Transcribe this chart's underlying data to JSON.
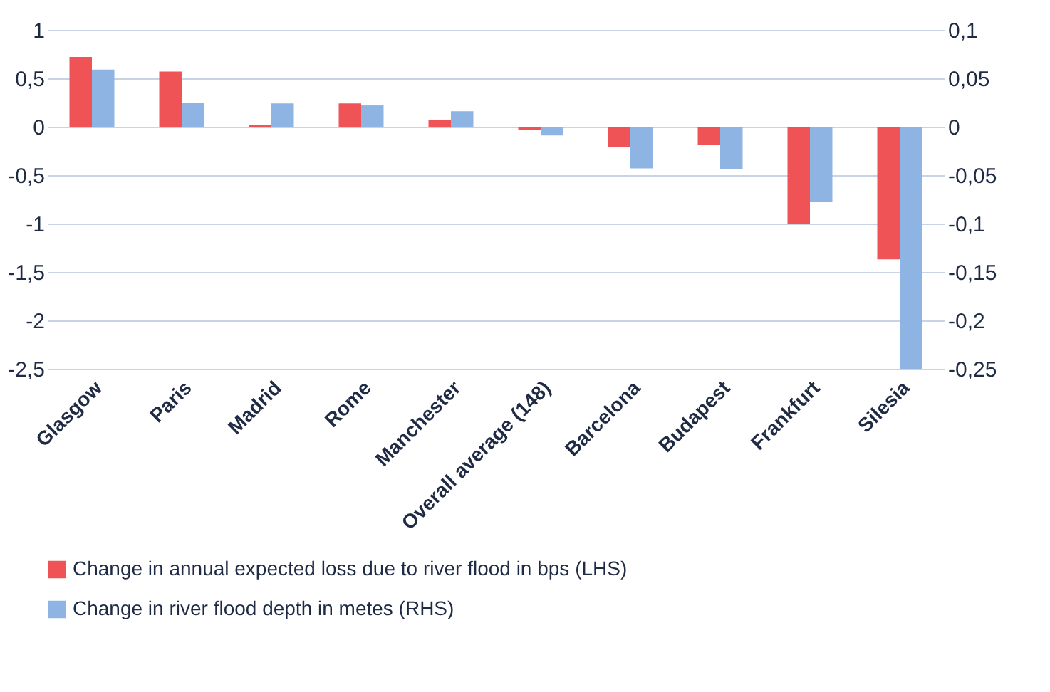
{
  "chart_data": {
    "type": "bar",
    "categories": [
      "Glasgow",
      "Paris",
      "Madrid",
      "Rome",
      "Manchester",
      "Overall average (148)",
      "Barcelona",
      "Budapest",
      "Frankfurt",
      "Silesia"
    ],
    "series": [
      {
        "name": "Change in annual expected loss due to river flood in bps (LHS)",
        "color": "#ef5356",
        "values": [
          0.72,
          0.57,
          0.02,
          0.24,
          0.07,
          -0.03,
          -0.21,
          -0.19,
          -1.0,
          -1.37
        ]
      },
      {
        "name": "Change in river flood depth in metes (RHS)",
        "color": "#8db4e2",
        "axis": "y2",
        "values": [
          0.059,
          0.025,
          0.024,
          0.022,
          0.016,
          -0.009,
          -0.043,
          -0.044,
          -0.078,
          -0.25
        ]
      }
    ],
    "ylim": [
      -2.5,
      1
    ],
    "yticks": [
      {
        "value": -2.5,
        "label": "-2,5"
      },
      -2,
      {
        "value": -1.5,
        "label": "-1,5"
      },
      -1,
      {
        "value": -0.5,
        "label": "-0,5"
      },
      0,
      {
        "value": 0.5,
        "label": "0,5"
      },
      1
    ],
    "y2lim": [
      -0.25,
      0.1
    ],
    "y2ticks": [
      {
        "value": -0.25,
        "label": "-0,25"
      },
      {
        "value": -0.2,
        "label": "-0,2"
      },
      {
        "value": -0.15,
        "label": "-0,15"
      },
      {
        "value": -0.1,
        "label": "-0,1"
      },
      {
        "value": -0.05,
        "label": "-0,05"
      },
      0,
      {
        "value": 0.05,
        "label": "0,05"
      },
      {
        "value": 0.1,
        "label": "0,1"
      }
    ],
    "grid": "y",
    "legend": "bottom"
  }
}
